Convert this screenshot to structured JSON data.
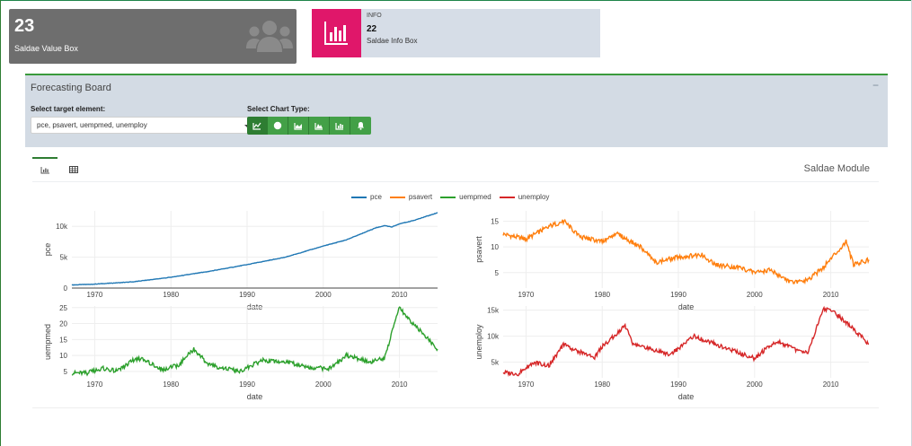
{
  "value_box": {
    "value": "23",
    "subtitle": "Saldae Value Box",
    "icon": "users-icon"
  },
  "info_box": {
    "title": "INFO",
    "value": "22",
    "subtitle": "Saldae Info Box",
    "icon": "bar-chart-icon",
    "color": "#e0176a"
  },
  "panel": {
    "title": "Forecasting Board",
    "collapse_label": "−",
    "target_label": "Select target element:",
    "target_value": "pce, psavert, uempmed, unemploy",
    "chart_type_label": "Select Chart Type:",
    "chart_types": [
      "line-chart-icon",
      "circle-icon",
      "area-chart-icon",
      "mountain-chart-icon",
      "bar-chart-icon",
      "bell-icon"
    ]
  },
  "module": {
    "title": "Saldae Module",
    "tabs": [
      "chart-tab-icon",
      "table-tab-icon"
    ]
  },
  "chart_data": [
    {
      "type": "line",
      "series": [
        {
          "name": "pce",
          "color": "#1f77b4"
        }
      ],
      "x": [
        1967,
        1970,
        1975,
        1980,
        1985,
        1990,
        1995,
        2000,
        2003,
        2005,
        2007,
        2008,
        2009,
        2010,
        2012,
        2015
      ],
      "y": [
        500,
        640,
        1000,
        1750,
        2700,
        3800,
        5000,
        6800,
        7800,
        8800,
        9800,
        10100,
        9900,
        10400,
        11000,
        12200
      ],
      "xlabel": "date",
      "ylabel": "pce",
      "xticks": [
        "1970",
        "1980",
        "1990",
        "2000",
        "2010"
      ],
      "yticks": [
        "0",
        "5k",
        "10k"
      ],
      "xlim": [
        1967,
        2015
      ],
      "ylim": [
        0,
        12500
      ],
      "grid": true
    },
    {
      "type": "line",
      "series": [
        {
          "name": "psavert",
          "color": "#ff7f0e"
        }
      ],
      "x": [
        1967,
        1970,
        1973,
        1975,
        1977,
        1980,
        1982,
        1985,
        1987,
        1990,
        1993,
        1995,
        1998,
        2000,
        2002,
        2005,
        2007,
        2009,
        2012,
        2013,
        2015
      ],
      "y": [
        12.5,
        11.5,
        14,
        15,
        12,
        11,
        12.5,
        10,
        7,
        8,
        8.5,
        6.5,
        6,
        5,
        5.5,
        3,
        3.5,
        6,
        11,
        6.5,
        7.5
      ],
      "xlabel": "date",
      "ylabel": "psavert",
      "xticks": [
        "1970",
        "1980",
        "1990",
        "2000",
        "2010"
      ],
      "yticks": [
        "5",
        "10",
        "15"
      ],
      "xlim": [
        1967,
        2015
      ],
      "ylim": [
        2,
        17
      ],
      "grid": true
    },
    {
      "type": "line",
      "series": [
        {
          "name": "uempmed",
          "color": "#2ca02c"
        }
      ],
      "x": [
        1967,
        1969,
        1971,
        1973,
        1975,
        1976,
        1979,
        1981,
        1983,
        1985,
        1989,
        1992,
        1995,
        1999,
        2001,
        2003,
        2006,
        2008,
        2009,
        2010,
        2011,
        2013,
        2015
      ],
      "y": [
        4.5,
        4.5,
        6,
        5,
        8.5,
        9,
        5.5,
        7,
        12,
        7,
        5,
        8.5,
        8,
        6,
        6,
        10,
        8,
        9,
        17,
        25,
        22,
        17,
        12
      ],
      "xlabel": "date",
      "ylabel": "uempmed",
      "xticks": [
        "1970",
        "1980",
        "1990",
        "2000",
        "2010"
      ],
      "yticks": [
        "5",
        "10",
        "15",
        "20",
        "25"
      ],
      "xlim": [
        1967,
        2015
      ],
      "ylim": [
        3,
        25.5
      ],
      "grid": true
    },
    {
      "type": "line",
      "series": [
        {
          "name": "unemploy",
          "color": "#d62728"
        }
      ],
      "x": [
        1967,
        1969,
        1971,
        1973,
        1975,
        1976,
        1979,
        1980,
        1983,
        1984,
        1989,
        1992,
        1993,
        2000,
        2001,
        2003,
        2006,
        2007,
        2009,
        2010,
        2012,
        2015
      ],
      "y": [
        3000,
        2800,
        5000,
        4300,
        8500,
        7500,
        6000,
        8000,
        12000,
        8500,
        6500,
        10000,
        9500,
        5700,
        7000,
        9000,
        7000,
        6800,
        15300,
        15000,
        12700,
        8500
      ],
      "xlabel": "date",
      "ylabel": "unemploy",
      "xticks": [
        "1970",
        "1980",
        "1990",
        "2000",
        "2010"
      ],
      "yticks": [
        "5k",
        "10k",
        "15k"
      ],
      "xlim": [
        1967,
        2015
      ],
      "ylim": [
        2000,
        15800
      ],
      "grid": true
    }
  ]
}
